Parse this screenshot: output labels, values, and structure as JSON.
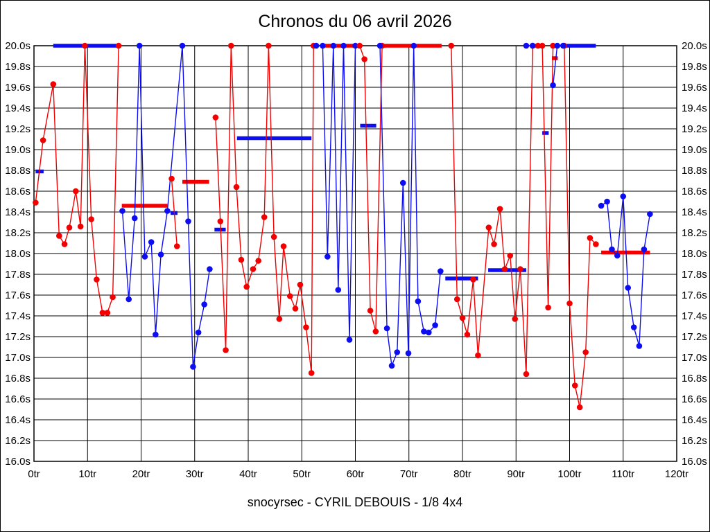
{
  "page": {
    "title": "Chronos du 06 avril 2026",
    "footer": "snocyrsec - CYRIL DEBOUIS - 1/8 4x4"
  },
  "chart_data": {
    "type": "line",
    "title": "Chronos du 06 avril 2026",
    "subtitle": "snocyrsec - CYRIL DEBOUIS - 1/8 4x4",
    "x_unit": "tr",
    "y_unit": "s",
    "xlim": [
      0,
      120
    ],
    "ylim": [
      16.0,
      20.0
    ],
    "grid": true,
    "legend": "none",
    "x_tick_labels": [
      "0tr",
      "10tr",
      "20tr",
      "30tr",
      "40tr",
      "50tr",
      "60tr",
      "70tr",
      "80tr",
      "90tr",
      "100tr",
      "110tr",
      "120tr"
    ],
    "y_tick_labels": [
      "20.0s",
      "19.8s",
      "19.6s",
      "19.4s",
      "19.2s",
      "19.0s",
      "18.8s",
      "18.6s",
      "18.4s",
      "18.2s",
      "18.0s",
      "17.8s",
      "17.6s",
      "17.4s",
      "17.2s",
      "17.0s",
      "16.8s",
      "16.6s",
      "16.4s",
      "16.2s",
      "16.0s"
    ],
    "colors": {
      "red": "#f20000",
      "blue": "#0d0df2"
    },
    "note_clipping": "lap times of 20.0s are clipped at the top axis",
    "sessions": [
      {
        "color": "red",
        "points": [
          [
            0.3,
            18.49
          ],
          [
            1.7,
            19.09
          ],
          [
            3.6,
            19.63
          ],
          [
            4.7,
            18.17
          ],
          [
            5.7,
            18.09
          ],
          [
            6.6,
            18.25
          ],
          [
            7.8,
            18.6
          ],
          [
            8.7,
            18.26
          ],
          [
            9.5,
            20.0
          ],
          [
            10.7,
            18.33
          ],
          [
            11.7,
            17.75
          ],
          [
            12.8,
            17.43
          ],
          [
            13.7,
            17.43
          ],
          [
            14.7,
            17.58
          ],
          [
            15.8,
            20.0
          ]
        ]
      },
      {
        "color": "blue",
        "points": [
          [
            16.5,
            18.41
          ],
          [
            17.7,
            17.56
          ],
          [
            18.8,
            18.34
          ],
          [
            19.7,
            20.0
          ],
          [
            20.7,
            17.97
          ],
          [
            21.9,
            18.11
          ],
          [
            22.7,
            17.22
          ],
          [
            23.7,
            17.99
          ],
          [
            24.9,
            18.41
          ],
          [
            27.7,
            20.0
          ],
          [
            28.8,
            18.31
          ],
          [
            29.7,
            16.91
          ],
          [
            30.7,
            17.24
          ],
          [
            31.8,
            17.51
          ],
          [
            32.8,
            17.85
          ]
        ]
      },
      {
        "color": "red",
        "points": [
          [
            25.7,
            18.72
          ],
          [
            26.7,
            18.07
          ]
        ]
      },
      {
        "color": "red",
        "points": [
          [
            33.9,
            19.31
          ],
          [
            34.8,
            18.31
          ],
          [
            35.8,
            17.07
          ],
          [
            36.8,
            20.0
          ],
          [
            37.8,
            18.64
          ],
          [
            38.7,
            17.94
          ],
          [
            39.7,
            17.68
          ],
          [
            40.9,
            17.85
          ],
          [
            41.9,
            17.93
          ],
          [
            43.0,
            18.35
          ],
          [
            43.8,
            20.0
          ],
          [
            44.8,
            18.16
          ],
          [
            45.8,
            17.37
          ],
          [
            46.6,
            18.07
          ],
          [
            47.8,
            17.59
          ],
          [
            48.8,
            17.47
          ],
          [
            49.7,
            17.7
          ],
          [
            50.8,
            17.29
          ],
          [
            51.8,
            16.85
          ],
          [
            52.2,
            20.0
          ]
        ]
      },
      {
        "color": "blue",
        "points": [
          [
            52.7,
            20.0
          ],
          [
            53.9,
            20.0
          ],
          [
            54.8,
            17.97
          ],
          [
            55.9,
            20.0
          ],
          [
            56.8,
            17.65
          ],
          [
            57.8,
            20.0
          ],
          [
            58.9,
            17.17
          ],
          [
            60.0,
            20.0
          ]
        ]
      },
      {
        "color": "red",
        "points": [
          [
            60.8,
            20.0
          ],
          [
            61.7,
            19.87
          ],
          [
            62.8,
            17.45
          ],
          [
            63.8,
            17.25
          ],
          [
            65.0,
            20.0
          ]
        ]
      },
      {
        "color": "blue",
        "points": [
          [
            64.6,
            20.0
          ],
          [
            65.9,
            17.28
          ],
          [
            66.8,
            16.92
          ],
          [
            67.8,
            17.05
          ],
          [
            68.9,
            18.68
          ],
          [
            69.9,
            17.04
          ],
          [
            70.9,
            20.0
          ],
          [
            71.7,
            17.54
          ],
          [
            72.8,
            17.25
          ],
          [
            73.7,
            17.24
          ],
          [
            74.9,
            17.31
          ],
          [
            75.9,
            17.83
          ]
        ]
      },
      {
        "color": "red",
        "points": [
          [
            77.9,
            20.0
          ],
          [
            79.0,
            17.56
          ],
          [
            80.0,
            17.38
          ],
          [
            80.9,
            17.22
          ],
          [
            82.0,
            17.75
          ],
          [
            82.9,
            17.02
          ],
          [
            84.9,
            18.25
          ],
          [
            85.9,
            18.09
          ],
          [
            87.0,
            18.43
          ],
          [
            87.9,
            17.85
          ],
          [
            88.9,
            17.98
          ],
          [
            89.8,
            17.37
          ],
          [
            90.8,
            17.85
          ],
          [
            91.9,
            16.84
          ],
          [
            93.1,
            20.0
          ],
          [
            94.1,
            20.0
          ],
          [
            94.9,
            20.0
          ],
          [
            96.0,
            17.48
          ],
          [
            96.9,
            20.0
          ],
          [
            99.0,
            20.0
          ],
          [
            100.0,
            17.52
          ],
          [
            101.0,
            16.73
          ],
          [
            101.9,
            16.52
          ],
          [
            103.0,
            17.05
          ],
          [
            103.8,
            18.15
          ],
          [
            104.9,
            18.09
          ]
        ]
      },
      {
        "color": "blue",
        "points": [
          [
            91.9,
            20.0
          ],
          [
            93.1,
            20.0
          ]
        ]
      },
      {
        "color": "blue",
        "points": [
          [
            96.9,
            19.62
          ],
          [
            97.7,
            20.0
          ],
          [
            98.8,
            20.0
          ]
        ]
      },
      {
        "color": "blue",
        "points": [
          [
            105.9,
            18.46
          ],
          [
            107.0,
            18.5
          ],
          [
            107.9,
            18.04
          ],
          [
            108.9,
            17.98
          ],
          [
            110.0,
            18.55
          ],
          [
            110.9,
            17.67
          ],
          [
            112.0,
            17.29
          ],
          [
            113.0,
            17.11
          ],
          [
            113.9,
            18.04
          ],
          [
            115.0,
            18.38
          ]
        ]
      }
    ],
    "average_bars": [
      {
        "color": "blue",
        "x1": 0.3,
        "x2": 1.8,
        "y": 18.79
      },
      {
        "color": "blue",
        "x1": 3.6,
        "x2": 15.8,
        "y": 20.0
      },
      {
        "color": "red",
        "x1": 16.4,
        "x2": 24.9,
        "y": 18.46
      },
      {
        "color": "blue",
        "x1": 25.5,
        "x2": 26.8,
        "y": 18.39
      },
      {
        "color": "red",
        "x1": 27.7,
        "x2": 32.7,
        "y": 18.69
      },
      {
        "color": "blue",
        "x1": 33.7,
        "x2": 35.8,
        "y": 18.23
      },
      {
        "color": "blue",
        "x1": 37.9,
        "x2": 51.8,
        "y": 19.11
      },
      {
        "color": "red",
        "x1": 53.9,
        "x2": 60.5,
        "y": 20.0
      },
      {
        "color": "blue",
        "x1": 60.9,
        "x2": 63.9,
        "y": 19.23
      },
      {
        "color": "red",
        "x1": 65.0,
        "x2": 76.1,
        "y": 20.0
      },
      {
        "color": "blue",
        "x1": 76.8,
        "x2": 82.9,
        "y": 17.76
      },
      {
        "color": "blue",
        "x1": 84.8,
        "x2": 91.9,
        "y": 17.84
      },
      {
        "color": "red",
        "x1": 93.1,
        "x2": 94.1,
        "y": 20.0
      },
      {
        "color": "blue",
        "x1": 94.9,
        "x2": 96.1,
        "y": 19.16
      },
      {
        "color": "red",
        "x1": 96.7,
        "x2": 97.8,
        "y": 19.88
      },
      {
        "color": "blue",
        "x1": 98.8,
        "x2": 104.9,
        "y": 20.0
      },
      {
        "color": "red",
        "x1": 105.9,
        "x2": 115.0,
        "y": 18.01
      }
    ]
  }
}
